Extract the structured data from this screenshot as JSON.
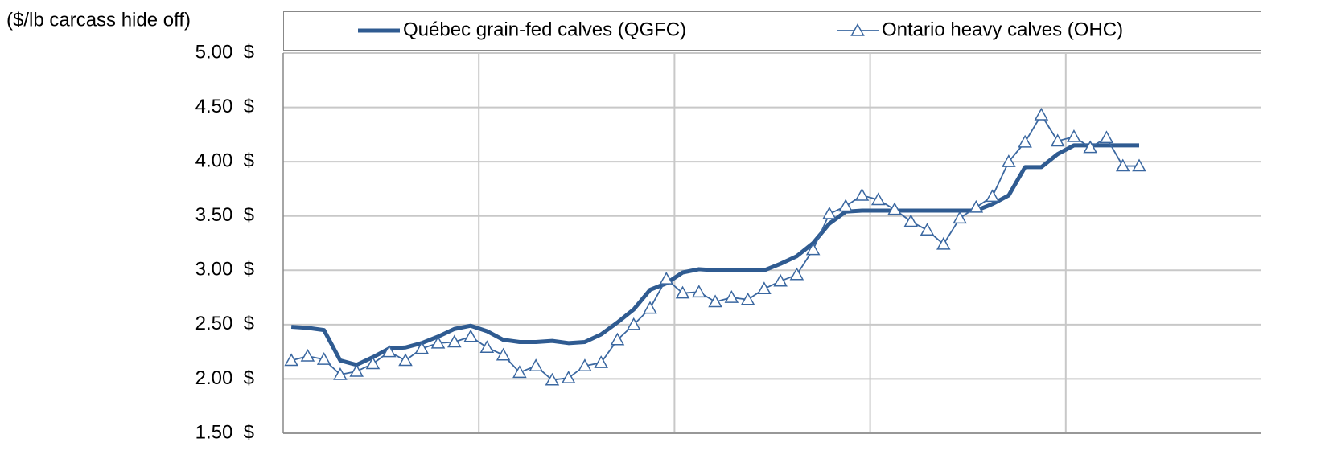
{
  "chart_data": {
    "type": "line",
    "y_axis_label": "($/lb carcass hide off)",
    "categories": [
      null,
      null,
      null,
      null,
      null,
      null,
      null,
      null,
      null,
      null,
      null,
      null,
      null,
      null,
      null,
      null,
      null,
      null,
      null,
      null,
      null,
      null,
      null,
      null,
      null,
      null,
      null,
      null,
      null,
      null,
      null,
      null,
      null,
      null,
      null,
      null,
      null,
      null,
      null,
      null,
      null,
      null,
      null,
      null,
      null,
      null,
      null,
      null,
      null,
      null,
      null,
      null,
      null,
      null,
      null,
      null,
      null,
      null,
      null,
      null
    ],
    "series": [
      {
        "name": "Québec grain-fed calves (QGFC)",
        "color": "#2f5b91",
        "marker": "none",
        "values": [
          2.48,
          2.47,
          2.45,
          2.17,
          2.13,
          2.2,
          2.28,
          2.29,
          2.33,
          2.39,
          2.46,
          2.49,
          2.44,
          2.36,
          2.34,
          2.34,
          2.35,
          2.33,
          2.34,
          2.41,
          2.52,
          2.64,
          2.82,
          2.88,
          2.98,
          3.01,
          3.0,
          3.0,
          3.0,
          3.0,
          3.06,
          3.13,
          3.25,
          3.43,
          3.54,
          3.55,
          3.55,
          3.55,
          3.55,
          3.55,
          3.55,
          3.55,
          3.55,
          3.61,
          3.69,
          3.95,
          3.95,
          4.07,
          4.15,
          4.15,
          4.15,
          4.15,
          4.15,
          null,
          null,
          null,
          null,
          null,
          null,
          null
        ]
      },
      {
        "name": "Ontario heavy calves (OHC)",
        "color": "#3a67a0",
        "marker": "triangle",
        "values": [
          2.17,
          2.21,
          2.18,
          2.04,
          2.07,
          2.14,
          2.25,
          2.17,
          2.28,
          2.33,
          2.34,
          2.39,
          2.29,
          2.22,
          2.06,
          2.12,
          1.99,
          2.01,
          2.12,
          2.15,
          2.36,
          2.5,
          2.65,
          2.92,
          2.79,
          2.8,
          2.71,
          2.75,
          2.73,
          2.83,
          2.9,
          2.96,
          3.19,
          3.52,
          3.59,
          3.69,
          3.65,
          3.56,
          3.45,
          3.37,
          3.24,
          3.48,
          3.58,
          3.68,
          4.0,
          4.18,
          4.43,
          4.19,
          4.23,
          4.13,
          4.22,
          3.96,
          3.96,
          null,
          null,
          null,
          null,
          null,
          null,
          null
        ]
      }
    ],
    "ylim": [
      1.5,
      5
    ],
    "yticks": [
      {
        "value": 1.5,
        "label": "1.50  $"
      },
      {
        "value": 2,
        "label": "2.00  $"
      },
      {
        "value": 2.5,
        "label": "2.50  $"
      },
      {
        "value": 3,
        "label": "3.00  $"
      },
      {
        "value": 3.5,
        "label": "3.50  $"
      },
      {
        "value": 4,
        "label": "4.00  $"
      },
      {
        "value": 4.5,
        "label": "4.50  $"
      },
      {
        "value": 5,
        "label": "5.00  $"
      }
    ],
    "grid": true,
    "legend": "top"
  }
}
